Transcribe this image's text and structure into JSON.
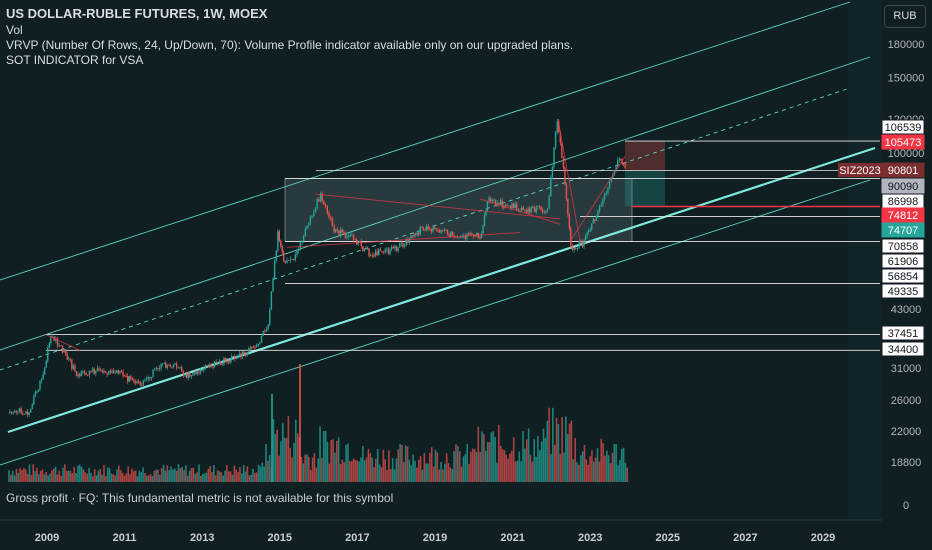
{
  "header": {
    "title": "US DOLLAR-RUBLE FUTURES, 1W, MOEX",
    "line1": "Vol",
    "line2": "VRVP (Number Of Rows, 24, Up/Down, 70): Volume Profile indicator available only on our upgraded plans.",
    "line3": "SOT INDICATOR for VSA"
  },
  "currency_button": "RUB",
  "footer_note": "Gross profit · FQ: This fundamental metric is not available for this symbol",
  "colors": {
    "background": "#0f1f22",
    "up": "#26a69a",
    "down": "#ef5350",
    "channel": "#5ad6c4",
    "trendline_main": "#7fe8dc",
    "resistance_red": "#f23645",
    "axis_text": "#b2b5be"
  },
  "chart_data": {
    "type": "candlestick",
    "symbol": "US DOLLAR-RUBLE FUTURES",
    "interval": "1W",
    "exchange": "MOEX",
    "x_ticks": [
      "2009",
      "2011",
      "2013",
      "2015",
      "2017",
      "2019",
      "2021",
      "2023",
      "2025",
      "2027",
      "2029"
    ],
    "y_ticks": [
      180000,
      150000,
      120000,
      100000,
      87000,
      72000,
      60000,
      49000,
      43000,
      36000,
      31000,
      26000,
      22000,
      18800,
      0
    ],
    "y_tick_labels": [
      "180000",
      "150000",
      "120000",
      "100000",
      "",
      "",
      "",
      "",
      "43000",
      "",
      "31000",
      "26000",
      "22000",
      "18800",
      "0"
    ],
    "price_path": [
      {
        "x": 2008.0,
        "y": 25000
      },
      {
        "x": 2008.5,
        "y": 24500
      },
      {
        "x": 2008.9,
        "y": 30000
      },
      {
        "x": 2009.1,
        "y": 37400
      },
      {
        "x": 2009.4,
        "y": 34500
      },
      {
        "x": 2009.8,
        "y": 30000
      },
      {
        "x": 2010.3,
        "y": 31000
      },
      {
        "x": 2010.8,
        "y": 30500
      },
      {
        "x": 2011.4,
        "y": 28500
      },
      {
        "x": 2011.9,
        "y": 31500
      },
      {
        "x": 2012.3,
        "y": 32000
      },
      {
        "x": 2012.6,
        "y": 30000
      },
      {
        "x": 2013.2,
        "y": 31500
      },
      {
        "x": 2013.8,
        "y": 33000
      },
      {
        "x": 2014.4,
        "y": 35000
      },
      {
        "x": 2014.7,
        "y": 40000
      },
      {
        "x": 2014.95,
        "y": 65000
      },
      {
        "x": 2015.1,
        "y": 55000
      },
      {
        "x": 2015.4,
        "y": 57000
      },
      {
        "x": 2015.7,
        "y": 67000
      },
      {
        "x": 2016.05,
        "y": 80000
      },
      {
        "x": 2016.4,
        "y": 66000
      },
      {
        "x": 2016.9,
        "y": 63000
      },
      {
        "x": 2017.3,
        "y": 58000
      },
      {
        "x": 2017.8,
        "y": 58500
      },
      {
        "x": 2018.3,
        "y": 62000
      },
      {
        "x": 2018.7,
        "y": 67000
      },
      {
        "x": 2019.2,
        "y": 65000
      },
      {
        "x": 2019.7,
        "y": 63500
      },
      {
        "x": 2020.2,
        "y": 64000
      },
      {
        "x": 2020.35,
        "y": 78000
      },
      {
        "x": 2020.9,
        "y": 75000
      },
      {
        "x": 2021.4,
        "y": 73500
      },
      {
        "x": 2021.9,
        "y": 74000
      },
      {
        "x": 2022.15,
        "y": 120000
      },
      {
        "x": 2022.35,
        "y": 85000
      },
      {
        "x": 2022.5,
        "y": 60000
      },
      {
        "x": 2022.8,
        "y": 61000
      },
      {
        "x": 2023.2,
        "y": 73000
      },
      {
        "x": 2023.5,
        "y": 85000
      },
      {
        "x": 2023.75,
        "y": 98000
      },
      {
        "x": 2023.9,
        "y": 92000
      }
    ],
    "volume_note": "weekly volume bars, peaks in 2015 and 2022",
    "price_labels": [
      {
        "text": "106539",
        "value": 106539,
        "style": "white"
      },
      {
        "text": "105473",
        "value": 105473,
        "style": "red"
      },
      {
        "text": "90801",
        "value": 90801,
        "style": "dark-red",
        "tag": "SIZ2023"
      },
      {
        "text": "90090",
        "value": 90090,
        "style": "gray"
      },
      {
        "text": "86998",
        "value": 86998,
        "style": "white"
      },
      {
        "text": "74812",
        "value": 74812,
        "style": "red"
      },
      {
        "text": "74707",
        "value": 74707,
        "style": "teal"
      },
      {
        "text": "70858",
        "value": 70858,
        "style": "white"
      },
      {
        "text": "61906",
        "value": 61906,
        "style": "white"
      },
      {
        "text": "56854",
        "value": 56854,
        "style": "white"
      },
      {
        "text": "49335",
        "value": 49335,
        "style": "white"
      },
      {
        "text": "37451",
        "value": 37451,
        "style": "white"
      },
      {
        "text": "34400",
        "value": 34400,
        "style": "white"
      }
    ],
    "legend": "none",
    "grid": false
  }
}
